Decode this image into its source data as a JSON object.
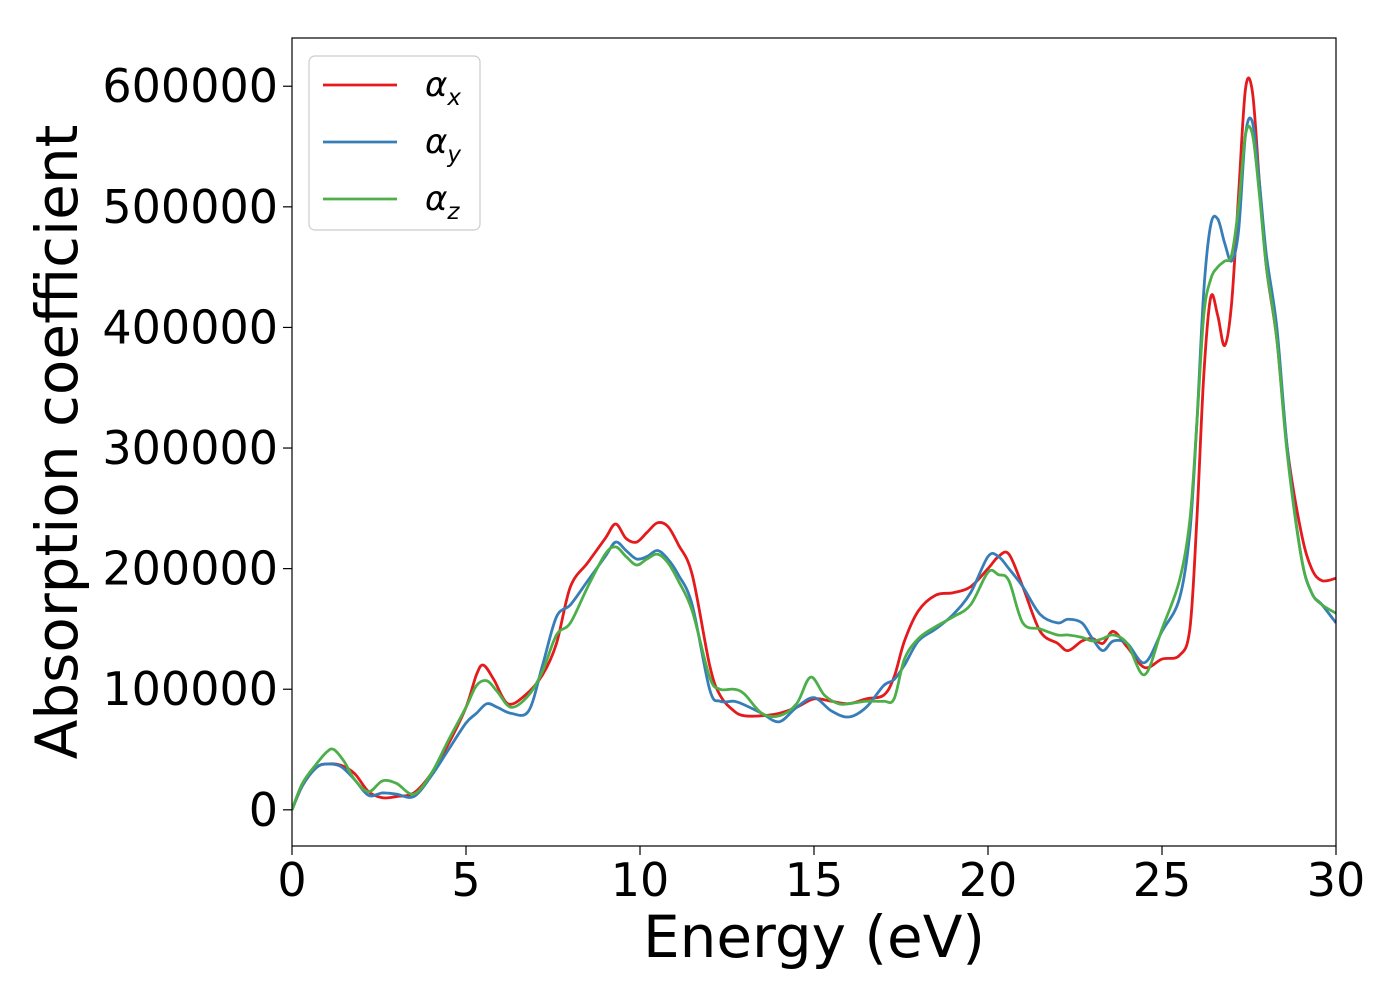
{
  "chart_data": {
    "type": "line",
    "xlabel": "Energy (eV)",
    "ylabel": "Absorption coefficient",
    "xlim": [
      0,
      30
    ],
    "ylim": [
      -30000,
      640000
    ],
    "xticks": [
      0,
      5,
      10,
      15,
      20,
      25,
      30
    ],
    "xtick_labels": [
      "0",
      "5",
      "10",
      "15",
      "20",
      "25",
      "30"
    ],
    "yticks": [
      0,
      100000,
      200000,
      300000,
      400000,
      500000,
      600000
    ],
    "ytick_labels": [
      "0",
      "100000",
      "200000",
      "300000",
      "400000",
      "500000",
      "600000"
    ],
    "grid": false,
    "legend": "top-left",
    "series": [
      {
        "name": "α",
        "subscript": "x",
        "color": "#e41a1c",
        "x": [
          0,
          0.3,
          0.7,
          1.0,
          1.4,
          1.8,
          2.2,
          2.6,
          3.0,
          3.5,
          4.0,
          4.5,
          5.0,
          5.3,
          5.5,
          5.8,
          6.2,
          6.7,
          7.2,
          7.6,
          8.0,
          8.5,
          9.0,
          9.3,
          9.6,
          9.9,
          10.2,
          10.5,
          10.8,
          11.1,
          11.5,
          12.0,
          12.3,
          12.7,
          13.0,
          13.5,
          14.0,
          14.5,
          15.0,
          15.5,
          16.0,
          16.5,
          17.0,
          17.3,
          17.6,
          18.0,
          18.5,
          19.0,
          19.5,
          20.0,
          20.3,
          20.6,
          21.0,
          21.5,
          22.0,
          22.3,
          22.7,
          23.0,
          23.3,
          23.6,
          24.0,
          24.5,
          25.0,
          25.5,
          25.8,
          26.0,
          26.2,
          26.4,
          26.6,
          26.8,
          27.0,
          27.2,
          27.4,
          27.6,
          27.8,
          28.0,
          28.3,
          28.6,
          29.0,
          29.3,
          29.6,
          30.0
        ],
        "y": [
          0,
          20000,
          35000,
          38000,
          37000,
          30000,
          15000,
          10000,
          11000,
          14000,
          30000,
          55000,
          85000,
          112000,
          120000,
          108000,
          88000,
          95000,
          112000,
          138000,
          185000,
          205000,
          225000,
          237000,
          225000,
          222000,
          230000,
          238000,
          235000,
          220000,
          195000,
          120000,
          95000,
          82000,
          78000,
          78000,
          80000,
          85000,
          92000,
          90000,
          88000,
          92000,
          95000,
          110000,
          140000,
          165000,
          178000,
          180000,
          185000,
          200000,
          210000,
          212000,
          185000,
          148000,
          138000,
          132000,
          140000,
          142000,
          138000,
          148000,
          135000,
          118000,
          125000,
          128000,
          150000,
          240000,
          360000,
          425000,
          410000,
          385000,
          420000,
          510000,
          598000,
          595000,
          520000,
          450000,
          390000,
          300000,
          230000,
          200000,
          190000,
          192000
        ]
      },
      {
        "name": "α",
        "subscript": "y",
        "color": "#377eb8",
        "x": [
          0,
          0.3,
          0.7,
          1.0,
          1.4,
          1.8,
          2.2,
          2.6,
          3.0,
          3.5,
          4.0,
          4.5,
          5.0,
          5.3,
          5.6,
          5.9,
          6.3,
          6.8,
          7.2,
          7.6,
          8.0,
          8.5,
          9.0,
          9.3,
          9.6,
          9.9,
          10.2,
          10.5,
          10.8,
          11.1,
          11.5,
          12.0,
          12.3,
          12.7,
          13.0,
          13.5,
          14.0,
          14.5,
          15.0,
          15.5,
          16.0,
          16.5,
          17.0,
          17.3,
          17.6,
          18.0,
          18.5,
          19.0,
          19.5,
          20.0,
          20.3,
          20.6,
          21.0,
          21.5,
          22.0,
          22.3,
          22.7,
          23.0,
          23.3,
          23.6,
          24.0,
          24.5,
          25.0,
          25.5,
          25.8,
          26.0,
          26.2,
          26.4,
          26.6,
          26.8,
          27.0,
          27.2,
          27.4,
          27.6,
          27.8,
          28.0,
          28.3,
          28.6,
          29.0,
          29.3,
          29.6,
          30.0
        ],
        "y": [
          0,
          20000,
          35000,
          38000,
          36000,
          25000,
          12000,
          14000,
          13000,
          11000,
          28000,
          50000,
          72000,
          80000,
          88000,
          85000,
          80000,
          82000,
          120000,
          160000,
          170000,
          190000,
          210000,
          222000,
          215000,
          208000,
          210000,
          215000,
          208000,
          195000,
          170000,
          100000,
          90000,
          90000,
          87000,
          80000,
          73000,
          85000,
          93000,
          82000,
          77000,
          85000,
          103000,
          108000,
          120000,
          140000,
          150000,
          162000,
          180000,
          210000,
          210000,
          200000,
          185000,
          162000,
          155000,
          158000,
          155000,
          142000,
          132000,
          140000,
          138000,
          122000,
          148000,
          175000,
          230000,
          320000,
          430000,
          485000,
          490000,
          470000,
          455000,
          480000,
          560000,
          570000,
          520000,
          460000,
          400000,
          300000,
          210000,
          180000,
          170000,
          155000
        ]
      },
      {
        "name": "α",
        "subscript": "z",
        "color": "#4daf4a",
        "x": [
          0,
          0.3,
          0.7,
          1.0,
          1.2,
          1.5,
          1.8,
          2.2,
          2.6,
          3.0,
          3.5,
          4.0,
          4.5,
          5.0,
          5.3,
          5.6,
          5.9,
          6.3,
          6.8,
          7.2,
          7.6,
          8.0,
          8.5,
          9.0,
          9.3,
          9.6,
          9.9,
          10.2,
          10.5,
          10.8,
          11.1,
          11.5,
          12.0,
          12.3,
          12.7,
          13.0,
          13.5,
          14.0,
          14.5,
          14.9,
          15.3,
          15.7,
          16.0,
          16.5,
          17.0,
          17.3,
          17.6,
          18.0,
          18.5,
          19.0,
          19.5,
          20.0,
          20.3,
          20.6,
          21.0,
          21.5,
          22.0,
          22.3,
          22.7,
          23.0,
          23.3,
          23.6,
          24.0,
          24.5,
          25.0,
          25.5,
          25.8,
          26.0,
          26.2,
          26.4,
          26.6,
          26.8,
          27.0,
          27.2,
          27.4,
          27.6,
          27.8,
          28.0,
          28.3,
          28.6,
          29.0,
          29.3,
          29.6,
          30.0
        ],
        "y": [
          0,
          22000,
          38000,
          48000,
          50000,
          40000,
          25000,
          15000,
          24000,
          22000,
          13000,
          30000,
          58000,
          85000,
          103000,
          107000,
          98000,
          85000,
          95000,
          115000,
          145000,
          155000,
          185000,
          212000,
          218000,
          210000,
          203000,
          208000,
          212000,
          205000,
          190000,
          165000,
          110000,
          100000,
          100000,
          96000,
          80000,
          78000,
          88000,
          110000,
          95000,
          88000,
          88000,
          90000,
          90000,
          92000,
          125000,
          142000,
          152000,
          160000,
          170000,
          197000,
          195000,
          190000,
          155000,
          150000,
          145000,
          145000,
          143000,
          140000,
          142000,
          145000,
          138000,
          112000,
          150000,
          190000,
          240000,
          320000,
          410000,
          440000,
          450000,
          455000,
          460000,
          500000,
          560000,
          560000,
          510000,
          450000,
          390000,
          295000,
          210000,
          180000,
          170000,
          163000
        ]
      }
    ]
  }
}
